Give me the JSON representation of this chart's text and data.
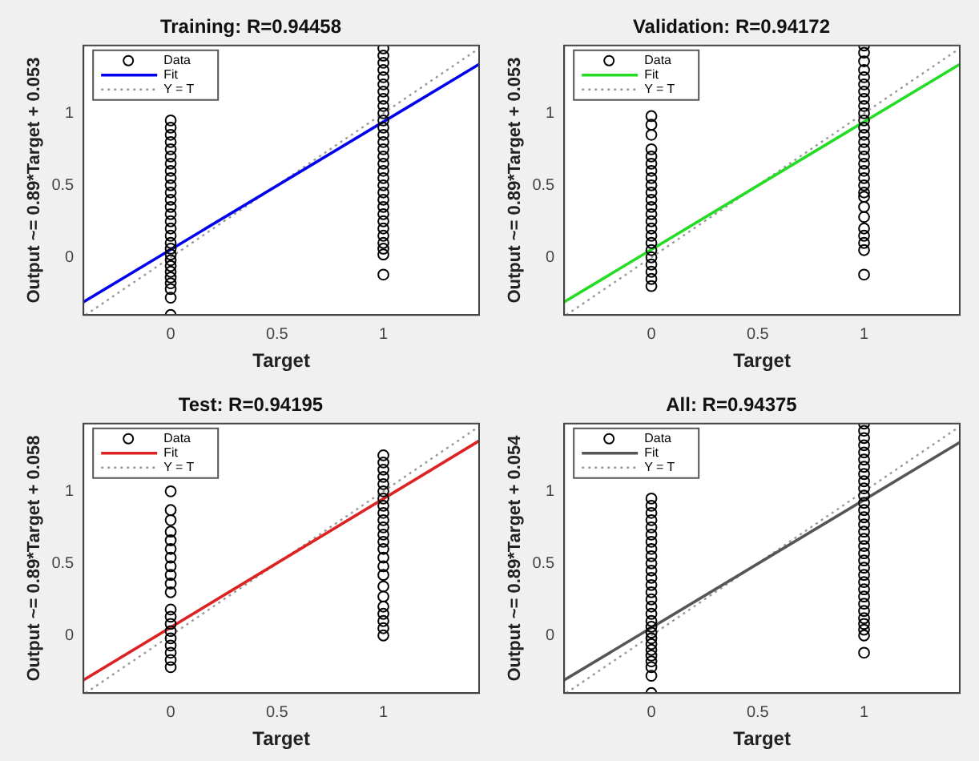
{
  "chart_data": [
    {
      "type": "scatter",
      "title": "Training: R=0.94458",
      "xlabel": "Target",
      "ylabel": "Output ~= 0.89*Target + 0.053",
      "xlim": [
        -0.41,
        1.45
      ],
      "ylim": [
        -0.4,
        1.47
      ],
      "xticks": [
        0,
        0.5,
        1
      ],
      "yticks": [
        0,
        0.5,
        1
      ],
      "grid": false,
      "legend": "top left",
      "series": [
        {
          "name": "Data",
          "type": "scatter",
          "marker": "circle",
          "color": "#000000",
          "x": [
            0,
            0,
            0,
            0,
            0,
            0,
            0,
            0,
            0,
            0,
            0,
            0,
            0,
            0,
            0,
            0,
            0,
            0,
            0,
            0,
            0,
            0,
            0,
            0,
            0,
            0,
            0,
            0,
            1,
            1,
            1,
            1,
            1,
            1,
            1,
            1,
            1,
            1,
            1,
            1,
            1,
            1,
            1,
            1,
            1,
            1,
            1,
            1,
            1,
            1,
            1,
            1,
            1,
            1,
            1,
            1,
            1,
            1,
            1
          ],
          "values": [
            -0.4,
            -0.28,
            -0.22,
            -0.18,
            -0.14,
            -0.1,
            -0.06,
            -0.02,
            0.02,
            0.06,
            0.1,
            0.15,
            0.2,
            0.25,
            0.3,
            0.35,
            0.4,
            0.45,
            0.5,
            0.55,
            0.6,
            0.65,
            0.7,
            0.75,
            0.8,
            0.85,
            0.9,
            0.95,
            -0.12,
            0.02,
            0.06,
            0.1,
            0.15,
            0.2,
            0.25,
            0.3,
            0.35,
            0.4,
            0.45,
            0.5,
            0.55,
            0.6,
            0.65,
            0.7,
            0.75,
            0.8,
            0.85,
            0.9,
            0.95,
            1,
            1.05,
            1.1,
            1.15,
            1.2,
            1.25,
            1.3,
            1.35,
            1.4,
            1.45
          ]
        },
        {
          "name": "Fit",
          "type": "line",
          "color": "#0000ee",
          "x": [
            -0.41,
            1.45
          ],
          "values": [
            -0.31,
            1.34
          ]
        },
        {
          "name": "Y = T",
          "type": "line",
          "line_style": "dotted",
          "color": "#999999",
          "x": [
            -0.4,
            1.45
          ],
          "values": [
            -0.4,
            1.45
          ]
        }
      ]
    },
    {
      "type": "scatter",
      "title": "Validation: R=0.94172",
      "xlabel": "Target",
      "ylabel": "Output ~= 0.89*Target + 0.053",
      "xlim": [
        -0.41,
        1.45
      ],
      "ylim": [
        -0.4,
        1.47
      ],
      "xticks": [
        0,
        0.5,
        1
      ],
      "yticks": [
        0,
        0.5,
        1
      ],
      "grid": false,
      "legend": "top left",
      "series": [
        {
          "name": "Data",
          "type": "scatter",
          "marker": "circle",
          "color": "#000000",
          "x": [
            0,
            0,
            0,
            0,
            0,
            0,
            0,
            0,
            0,
            0,
            0,
            0,
            0,
            0,
            0,
            0,
            0,
            0,
            0,
            0,
            0,
            0,
            0,
            1,
            1,
            1,
            1,
            1,
            1,
            1,
            1,
            1,
            1,
            1,
            1,
            1,
            1,
            1,
            1,
            1,
            1,
            1,
            1,
            1,
            1,
            1,
            1,
            1,
            1,
            1,
            1,
            1
          ],
          "values": [
            -0.2,
            -0.15,
            -0.1,
            -0.05,
            0,
            0.05,
            0.1,
            0.15,
            0.2,
            0.25,
            0.3,
            0.35,
            0.4,
            0.45,
            0.5,
            0.55,
            0.6,
            0.65,
            0.7,
            0.75,
            0.85,
            0.92,
            0.98,
            -0.12,
            0.05,
            0.1,
            0.15,
            0.2,
            0.28,
            0.35,
            0.42,
            0.5,
            0.55,
            0.6,
            0.65,
            0.7,
            0.75,
            0.8,
            0.85,
            0.9,
            0.95,
            1,
            1.05,
            1.1,
            1.15,
            1.2,
            1.25,
            1.3,
            1.36,
            1.42,
            1.47,
            0.45
          ]
        },
        {
          "name": "Fit",
          "type": "line",
          "color": "#22dd22",
          "x": [
            -0.41,
            1.45
          ],
          "values": [
            -0.31,
            1.34
          ]
        },
        {
          "name": "Y = T",
          "type": "line",
          "line_style": "dotted",
          "color": "#999999",
          "x": [
            -0.4,
            1.45
          ],
          "values": [
            -0.4,
            1.45
          ]
        }
      ]
    },
    {
      "type": "scatter",
      "title": "Test: R=0.94195",
      "xlabel": "Target",
      "ylabel": "Output ~= 0.89*Target + 0.058",
      "xlim": [
        -0.41,
        1.45
      ],
      "ylim": [
        -0.4,
        1.47
      ],
      "xticks": [
        0,
        0.5,
        1
      ],
      "yticks": [
        0,
        0.5,
        1
      ],
      "grid": false,
      "legend": "top left",
      "series": [
        {
          "name": "Data",
          "type": "scatter",
          "marker": "circle",
          "color": "#000000",
          "x": [
            0,
            0,
            0,
            0,
            0,
            0,
            0,
            0,
            0,
            0,
            0,
            0,
            0,
            0,
            0,
            0,
            0,
            0,
            0,
            0,
            1,
            1,
            1,
            1,
            1,
            1,
            1,
            1,
            1,
            1,
            1,
            1,
            1,
            1,
            1,
            1,
            1,
            1,
            1,
            1,
            1,
            1,
            1,
            1
          ],
          "values": [
            -0.22,
            -0.17,
            -0.12,
            -0.07,
            -0.02,
            0.03,
            0.08,
            0.13,
            0.18,
            0.3,
            0.36,
            0.42,
            0.48,
            0.54,
            0.6,
            0.66,
            0.72,
            0.8,
            0.87,
            1,
            0,
            0.05,
            0.1,
            0.15,
            0.2,
            0.27,
            0.34,
            0.42,
            0.48,
            0.54,
            0.6,
            0.65,
            0.7,
            0.75,
            0.8,
            0.85,
            0.9,
            0.95,
            1,
            1.05,
            1.1,
            1.15,
            1.2,
            1.25
          ]
        },
        {
          "name": "Fit",
          "type": "line",
          "color": "#dd2222",
          "x": [
            -0.41,
            1.45
          ],
          "values": [
            -0.31,
            1.35
          ]
        },
        {
          "name": "Y = T",
          "type": "line",
          "line_style": "dotted",
          "color": "#999999",
          "x": [
            -0.4,
            1.45
          ],
          "values": [
            -0.4,
            1.45
          ]
        }
      ]
    },
    {
      "type": "scatter",
      "title": "All: R=0.94375",
      "xlabel": "Target",
      "ylabel": "Output ~= 0.89*Target + 0.054",
      "xlim": [
        -0.41,
        1.45
      ],
      "ylim": [
        -0.4,
        1.47
      ],
      "xticks": [
        0,
        0.5,
        1
      ],
      "yticks": [
        0,
        0.5,
        1
      ],
      "grid": false,
      "legend": "top left",
      "series": [
        {
          "name": "Data",
          "type": "scatter",
          "marker": "circle",
          "color": "#000000",
          "x": [
            0,
            0,
            0,
            0,
            0,
            0,
            0,
            0,
            0,
            0,
            0,
            0,
            0,
            0,
            0,
            0,
            0,
            0,
            0,
            0,
            0,
            0,
            0,
            0,
            0,
            0,
            0,
            0,
            1,
            1,
            1,
            1,
            1,
            1,
            1,
            1,
            1,
            1,
            1,
            1,
            1,
            1,
            1,
            1,
            1,
            1,
            1,
            1,
            1,
            1,
            1,
            1,
            1,
            1,
            1,
            1,
            1,
            1,
            1,
            1
          ],
          "values": [
            -0.4,
            -0.28,
            -0.22,
            -0.18,
            -0.14,
            -0.1,
            -0.06,
            -0.02,
            0.02,
            0.06,
            0.1,
            0.15,
            0.2,
            0.25,
            0.3,
            0.35,
            0.4,
            0.45,
            0.5,
            0.55,
            0.6,
            0.65,
            0.7,
            0.75,
            0.8,
            0.85,
            0.9,
            0.95,
            -0.12,
            0,
            0.04,
            0.08,
            0.12,
            0.17,
            0.22,
            0.27,
            0.32,
            0.37,
            0.42,
            0.47,
            0.52,
            0.57,
            0.62,
            0.67,
            0.72,
            0.77,
            0.82,
            0.87,
            0.92,
            0.97,
            1.02,
            1.07,
            1.12,
            1.17,
            1.22,
            1.27,
            1.32,
            1.37,
            1.42,
            1.47
          ]
        },
        {
          "name": "Fit",
          "type": "line",
          "color": "#555555",
          "x": [
            -0.41,
            1.45
          ],
          "values": [
            -0.31,
            1.34
          ]
        },
        {
          "name": "Y = T",
          "type": "line",
          "line_style": "dotted",
          "color": "#999999",
          "x": [
            -0.4,
            1.45
          ],
          "values": [
            -0.4,
            1.45
          ]
        }
      ]
    }
  ]
}
